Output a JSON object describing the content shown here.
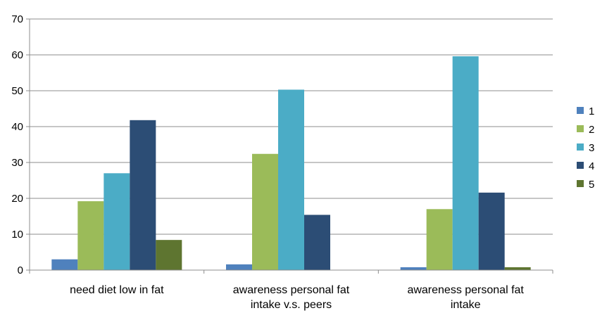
{
  "chart_data": {
    "type": "bar",
    "categories": [
      [
        "need diet low in fat"
      ],
      [
        "awareness personal fat",
        "intake v.s. peers"
      ],
      [
        "awareness personal fat",
        "intake"
      ]
    ],
    "series": [
      {
        "name": "1",
        "color": "#4F81BD",
        "values": [
          3,
          1.6,
          0.8
        ]
      },
      {
        "name": "2",
        "color": "#9BBB59",
        "values": [
          19.2,
          32.4,
          17
        ]
      },
      {
        "name": "3",
        "color": "#4BACC6",
        "values": [
          27,
          50.3,
          59.6
        ]
      },
      {
        "name": "4",
        "color": "#2C4D75",
        "values": [
          41.8,
          15.4,
          21.6
        ]
      },
      {
        "name": "5",
        "color": "#5E7530",
        "values": [
          8.4,
          0,
          0.8
        ]
      }
    ],
    "ylim": [
      0,
      70
    ],
    "yticks": [
      "0",
      "10",
      "20",
      "30",
      "40",
      "50",
      "60",
      "70"
    ],
    "grid": true,
    "legend_position": "right",
    "xlabel": "",
    "ylabel": "",
    "title": ""
  }
}
